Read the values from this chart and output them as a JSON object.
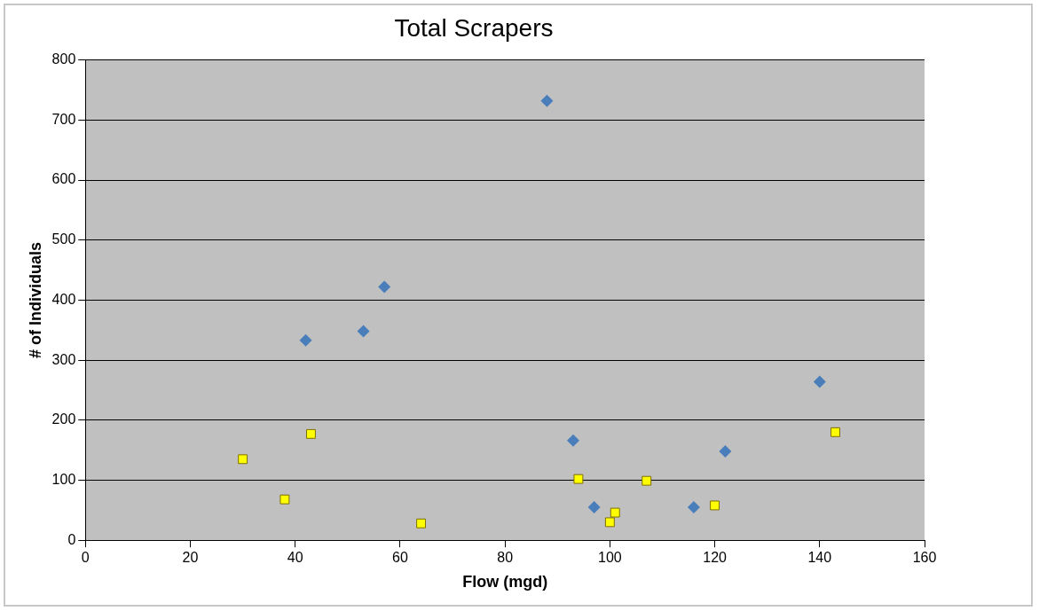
{
  "chart_data": {
    "type": "scatter",
    "title": "Total Scrapers",
    "xlabel": "Flow (mgd)",
    "ylabel": "# of Individuals",
    "xlim": [
      0,
      160
    ],
    "xticks": [
      0,
      20,
      40,
      60,
      80,
      100,
      120,
      140,
      160
    ],
    "ylim": [
      0,
      800
    ],
    "yticks": [
      0,
      100,
      200,
      300,
      400,
      500,
      600,
      700,
      800
    ],
    "grid": "y",
    "legend": false,
    "series": [
      {
        "color": "#4a7ebb",
        "marker": "diamond",
        "x": [
          42,
          53,
          57,
          88,
          93,
          97,
          116,
          122,
          140
        ],
        "values": [
          333,
          348,
          422,
          732,
          166,
          55,
          55,
          148,
          264
        ]
      },
      {
        "color": "#ffff00",
        "marker": "square",
        "x": [
          30,
          38,
          43,
          64,
          94,
          100,
          101,
          107,
          120,
          143
        ],
        "values": [
          135,
          68,
          177,
          28,
          102,
          30,
          46,
          99,
          58,
          180
        ]
      }
    ]
  }
}
